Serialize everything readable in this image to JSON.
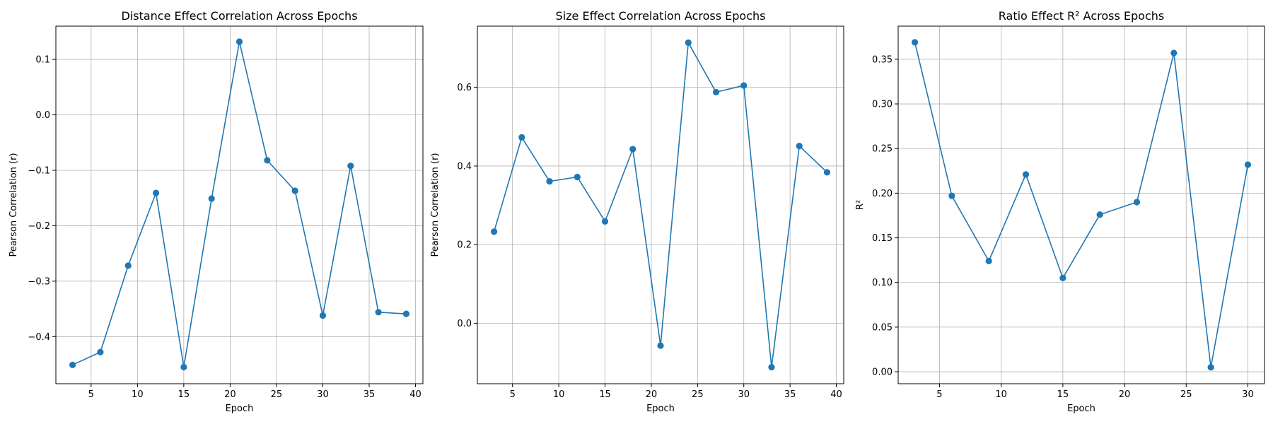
{
  "chart_data": [
    {
      "type": "line",
      "title": "Distance Effect Correlation Across Epochs",
      "xlabel": "Epoch",
      "ylabel": "Pearson Correlation (r)",
      "xlim": [
        1.2,
        40.8
      ],
      "ylim": [
        -0.485,
        0.16
      ],
      "xticks": [
        5,
        10,
        15,
        20,
        25,
        30,
        35,
        40
      ],
      "yticks": [
        -0.4,
        -0.3,
        -0.2,
        -0.1,
        0.0,
        0.1
      ],
      "ytick_labels": [
        "−0.4",
        "−0.3",
        "−0.2",
        "−0.1",
        "0.0",
        "0.1"
      ],
      "grid": true,
      "color": "#1f77b4",
      "series": [
        {
          "x": [
            3,
            6,
            9,
            12,
            15,
            18,
            21,
            24,
            27,
            30,
            33,
            36,
            39
          ],
          "values": [
            -0.451,
            -0.428,
            -0.272,
            -0.141,
            -0.455,
            -0.151,
            0.132,
            -0.082,
            -0.137,
            -0.362,
            -0.092,
            -0.356,
            -0.359
          ]
        }
      ]
    },
    {
      "type": "line",
      "title": "Size Effect Correlation Across Epochs",
      "xlabel": "Epoch",
      "ylabel": "Pearson Correlation (r)",
      "xlim": [
        1.2,
        40.8
      ],
      "ylim": [
        -0.154,
        0.756
      ],
      "xticks": [
        5,
        10,
        15,
        20,
        25,
        30,
        35,
        40
      ],
      "yticks": [
        0.0,
        0.2,
        0.4,
        0.6
      ],
      "ytick_labels": [
        "0.0",
        "0.2",
        "0.4",
        "0.6"
      ],
      "grid": true,
      "color": "#1f77b4",
      "series": [
        {
          "x": [
            3,
            6,
            9,
            12,
            15,
            18,
            21,
            24,
            27,
            30,
            33,
            36,
            39
          ],
          "values": [
            0.233,
            0.473,
            0.361,
            0.372,
            0.259,
            0.443,
            -0.057,
            0.714,
            0.588,
            0.605,
            -0.112,
            0.451,
            0.384
          ]
        }
      ]
    },
    {
      "type": "line",
      "title": "Ratio Effect R² Across Epochs",
      "xlabel": "Epoch",
      "ylabel": "R²",
      "xlim": [
        1.65,
        31.35
      ],
      "ylim": [
        -0.0134,
        0.3871
      ],
      "xticks": [
        5,
        10,
        15,
        20,
        25,
        30
      ],
      "yticks": [
        0.0,
        0.05,
        0.1,
        0.15,
        0.2,
        0.25,
        0.3,
        0.35
      ],
      "ytick_labels": [
        "0.00",
        "0.05",
        "0.10",
        "0.15",
        "0.20",
        "0.25",
        "0.30",
        "0.35"
      ],
      "grid": true,
      "color": "#1f77b4",
      "series": [
        {
          "x": [
            3,
            6,
            9,
            12,
            15,
            18,
            21,
            24,
            27,
            30
          ],
          "values": [
            0.369,
            0.197,
            0.124,
            0.221,
            0.105,
            0.176,
            0.19,
            0.357,
            0.005,
            0.232
          ]
        }
      ]
    }
  ]
}
